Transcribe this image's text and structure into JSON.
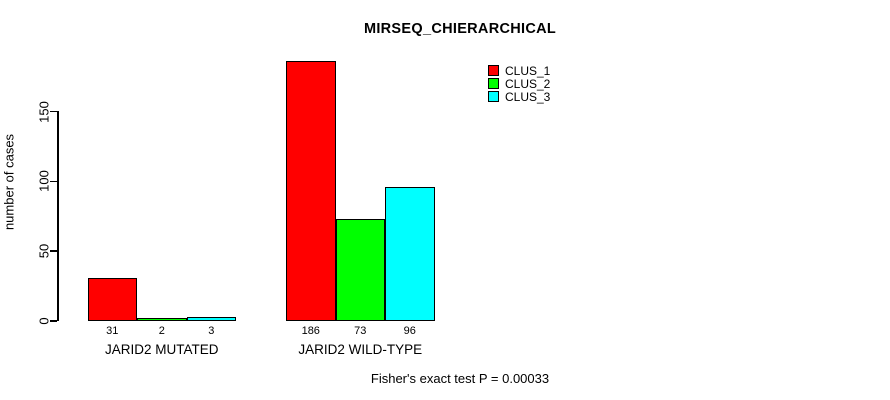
{
  "chart_data": {
    "type": "bar",
    "title": "MIRSEQ_CHIERARCHICAL",
    "ylabel": "number of cases",
    "xlabel": "",
    "footnote": "Fisher's exact test P = 0.00033",
    "categories": [
      "JARID2 MUTATED",
      "JARID2 WILD-TYPE"
    ],
    "series": [
      {
        "name": "CLUS_1",
        "color": "#ff0000",
        "values": [
          31,
          186
        ]
      },
      {
        "name": "CLUS_2",
        "color": "#00ff00",
        "values": [
          2,
          73
        ]
      },
      {
        "name": "CLUS_3",
        "color": "#00ffff",
        "values": [
          3,
          96
        ]
      }
    ],
    "yticks": [
      0,
      50,
      100,
      150
    ],
    "ylim": [
      0,
      190
    ],
    "bar_value_labels": [
      [
        "31",
        "2",
        "3"
      ],
      [
        "186",
        "73",
        "96"
      ]
    ],
    "legend_position": "top-right",
    "grid": false
  },
  "colors": {
    "background": "#ffffff",
    "axis": "#000000",
    "text": "#000000"
  }
}
